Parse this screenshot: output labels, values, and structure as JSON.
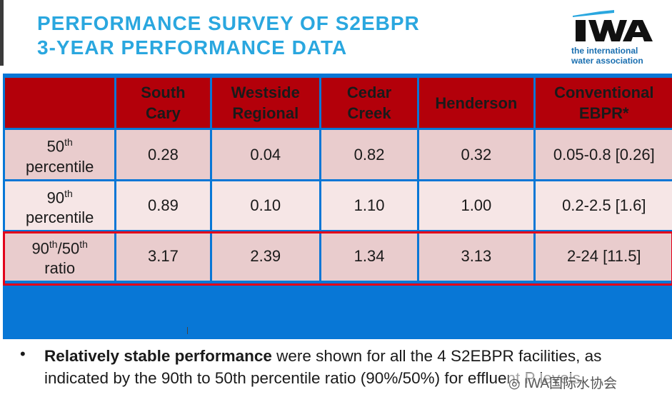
{
  "title": {
    "line1": "PERFORMANCE SURVEY OF S2EBPR",
    "line2": "3-YEAR PERFORMANCE DATA"
  },
  "logo": {
    "mark": "IWA",
    "line1": "the international",
    "line2": "water association"
  },
  "table": {
    "headers": [
      {
        "line1": "South",
        "line2": "Cary"
      },
      {
        "line1": "Westside",
        "line2": "Regional"
      },
      {
        "line1": "Cedar",
        "line2": "Creek"
      },
      {
        "line1": "Henderson",
        "line2": ""
      },
      {
        "line1": "Conventional",
        "line2": "EBPR*"
      }
    ],
    "rows": [
      {
        "label_num": "50",
        "label_sup": "th",
        "label_word": "percentile",
        "values": [
          "0.28",
          "0.04",
          "0.82",
          "0.32",
          "0.05-0.8 [0.26]"
        ]
      },
      {
        "label_num": "90",
        "label_sup": "th",
        "label_word": "percentile",
        "values": [
          "0.89",
          "0.10",
          "1.10",
          "1.00",
          "0.2-2.5 [1.6]"
        ]
      },
      {
        "label_a": "90",
        "label_a_sup": "th",
        "label_b": "/50",
        "label_b_sup": "th",
        "label_word": "ratio",
        "values": [
          "3.17",
          "2.39",
          "1.34",
          "3.13",
          "2-24 [11.5]"
        ]
      }
    ]
  },
  "bullet": {
    "bold": "Relatively stable performance",
    "rest": " were shown for all the 4 S2EBPR facilities, as indicated by the 90th to 50th percentile ratio (90%/50%) for effluent P levels."
  },
  "watermark": "IWA国际水协会",
  "colors": {
    "title": "#2aa7df",
    "header": "#b3000a",
    "highlight": "#e2001a",
    "panel": "#0877d6"
  }
}
